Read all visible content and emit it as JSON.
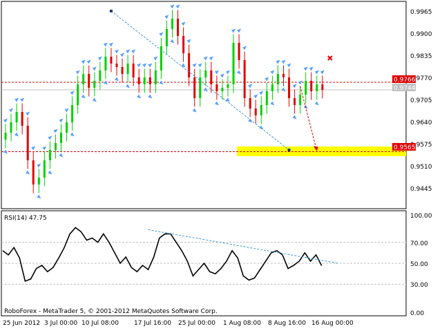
{
  "chart_data": [
    {
      "type": "candlestick",
      "title": "",
      "colors": {
        "bull": "#00d000",
        "bear": "#e00000",
        "fractal": "#5aa0ff",
        "zone": "#ffff00"
      },
      "y_ticks": [
        "0.9965",
        "0.9900",
        "0.9835",
        "0.9770",
        "0.9705",
        "0.9640",
        "0.9575",
        "0.9510",
        "0.9445"
      ],
      "ylim": [
        0.94,
        1.0
      ],
      "price_labels": {
        "resistance": "0.9766",
        "current": "0.9744",
        "target": "0.9565"
      },
      "levels": {
        "resistance": 0.9766,
        "current": 0.9744,
        "target": 0.9565
      },
      "target_zone": [
        0.9552,
        0.958
      ],
      "downtrend_line": [
        [
          19,
          0.9972
        ],
        [
          51,
          0.957
        ]
      ],
      "forecast_arrow": [
        [
          53,
          0.9755
        ],
        [
          56,
          0.9567
        ]
      ],
      "x_points": 58,
      "closes": [
        0.962,
        0.965,
        0.968,
        0.964,
        0.954,
        0.947,
        0.949,
        0.954,
        0.957,
        0.959,
        0.962,
        0.965,
        0.97,
        0.976,
        0.979,
        0.975,
        0.977,
        0.98,
        0.984,
        0.982,
        0.981,
        0.979,
        0.982,
        0.978,
        0.976,
        0.978,
        0.976,
        0.98,
        0.987,
        0.992,
        0.995,
        0.99,
        0.985,
        0.978,
        0.972,
        0.978,
        0.98,
        0.976,
        0.974,
        0.975,
        0.976,
        0.988,
        0.983,
        0.972,
        0.969,
        0.967,
        0.97,
        0.974,
        0.976,
        0.979,
        0.978,
        0.972,
        0.97,
        0.973,
        0.977,
        0.974,
        0.976,
        0.9744
      ]
    },
    {
      "type": "line",
      "title": "RSI(14) 47.75",
      "y_ticks": [
        "100.00",
        "70.00",
        "50.00",
        "30.00",
        "0.00"
      ],
      "ylim": [
        0,
        100
      ],
      "levels": [
        70,
        50,
        30
      ],
      "trend_line": [
        [
          26,
          82
        ],
        [
          60,
          50
        ]
      ],
      "values": [
        62,
        58,
        65,
        55,
        33,
        35,
        45,
        48,
        42,
        46,
        55,
        65,
        78,
        84,
        80,
        72,
        74,
        70,
        78,
        70,
        60,
        50,
        56,
        46,
        42,
        48,
        44,
        56,
        74,
        78,
        78,
        70,
        62,
        52,
        38,
        44,
        50,
        42,
        40,
        45,
        52,
        62,
        55,
        38,
        34,
        36,
        44,
        52,
        60,
        62,
        58,
        45,
        48,
        52,
        60,
        52,
        58,
        47.75
      ],
      "x_labels": [
        "25 Jun 2012",
        "3 Jul 00:00",
        "10 Jul 08:00",
        "17 Jul 16:00",
        "25 Jul 00:00",
        "1 Aug 08:00",
        "8 Aug 16:00",
        "16 Aug 00:00"
      ]
    }
  ],
  "footer": {
    "copyright": "RoboForex - MetaTrader 5, © 2001-2012 MetaQuotes Software Corp."
  }
}
